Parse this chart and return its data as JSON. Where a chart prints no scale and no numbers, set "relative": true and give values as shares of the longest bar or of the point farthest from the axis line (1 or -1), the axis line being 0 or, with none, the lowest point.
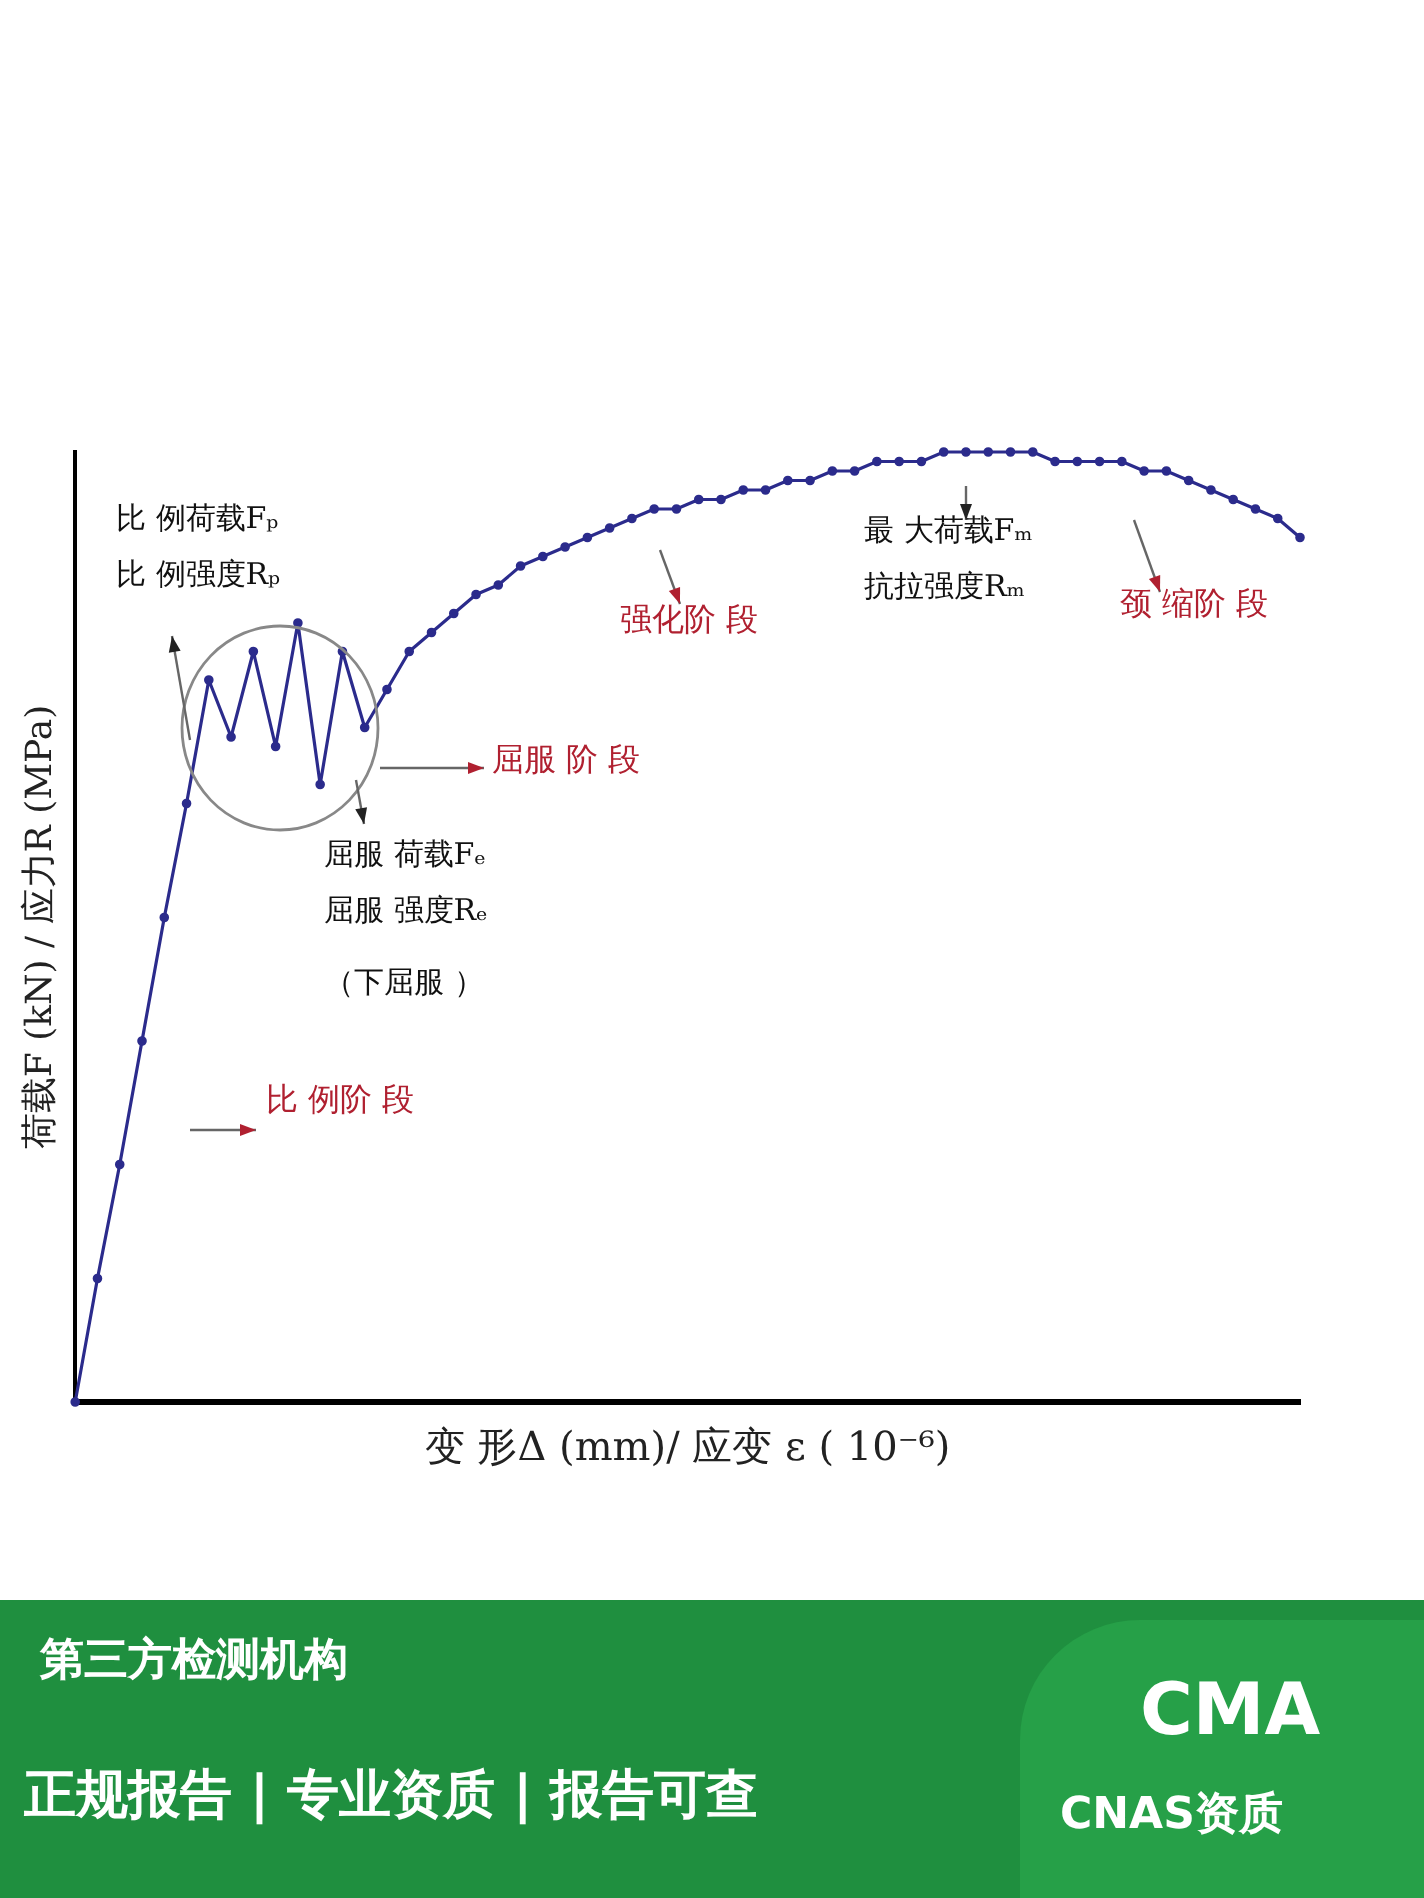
{
  "chart_data": {
    "type": "line",
    "relative": true,
    "xlabel": "变 形Δ (mm)/ 应变 ε ( 10⁻⁶)",
    "ylabel": "荷载F (kN) / 应力R (MPa)",
    "marker": "circle",
    "line_style": "solid",
    "legend": false,
    "grid": false,
    "tick_labels": false,
    "categories": [
      null,
      null,
      null,
      null,
      null,
      null,
      null,
      null,
      null,
      null,
      null,
      null,
      null,
      null,
      null,
      null,
      null,
      null,
      null,
      null,
      null,
      null,
      null,
      null,
      null,
      null,
      null,
      null,
      null,
      null,
      null,
      null,
      null,
      null,
      null,
      null,
      null,
      null,
      null,
      null,
      null,
      null,
      null,
      null,
      null,
      null,
      null,
      null,
      null,
      null,
      null,
      null,
      null,
      null,
      null,
      null
    ],
    "series": [
      {
        "color": "#2b2b8c",
        "values": [
          0,
          0.13,
          0.25,
          0.38,
          0.51,
          0.63,
          0.76,
          0.7,
          0.79,
          0.69,
          0.82,
          0.65,
          0.79,
          0.71,
          0.75,
          0.79,
          0.81,
          0.83,
          0.85,
          0.86,
          0.88,
          0.89,
          0.9,
          0.91,
          0.92,
          0.93,
          0.94,
          0.94,
          0.95,
          0.95,
          0.96,
          0.96,
          0.97,
          0.97,
          0.98,
          0.98,
          0.99,
          0.99,
          0.99,
          1,
          1,
          1,
          1,
          1,
          0.99,
          0.99,
          0.99,
          0.99,
          0.98,
          0.98,
          0.97,
          0.96,
          0.95,
          0.94,
          0.93,
          0.91
        ]
      }
    ],
    "annotations": [
      "比 例荷载Fₚ",
      "比 例强度Rₚ",
      "屈服 荷载Fₑ",
      "屈服 强度Rₑ",
      "（下屈服 ）",
      "最 大荷载Fₘ",
      "抗拉强度Rₘ",
      "比 例阶 段",
      "屈服 阶 段",
      "强化阶 段",
      "颈 缩阶 段",
      "第三方检测机构",
      "正规报告 | 专业资质 | 报告可查",
      "CMA",
      "CNAS资质"
    ]
  }
}
